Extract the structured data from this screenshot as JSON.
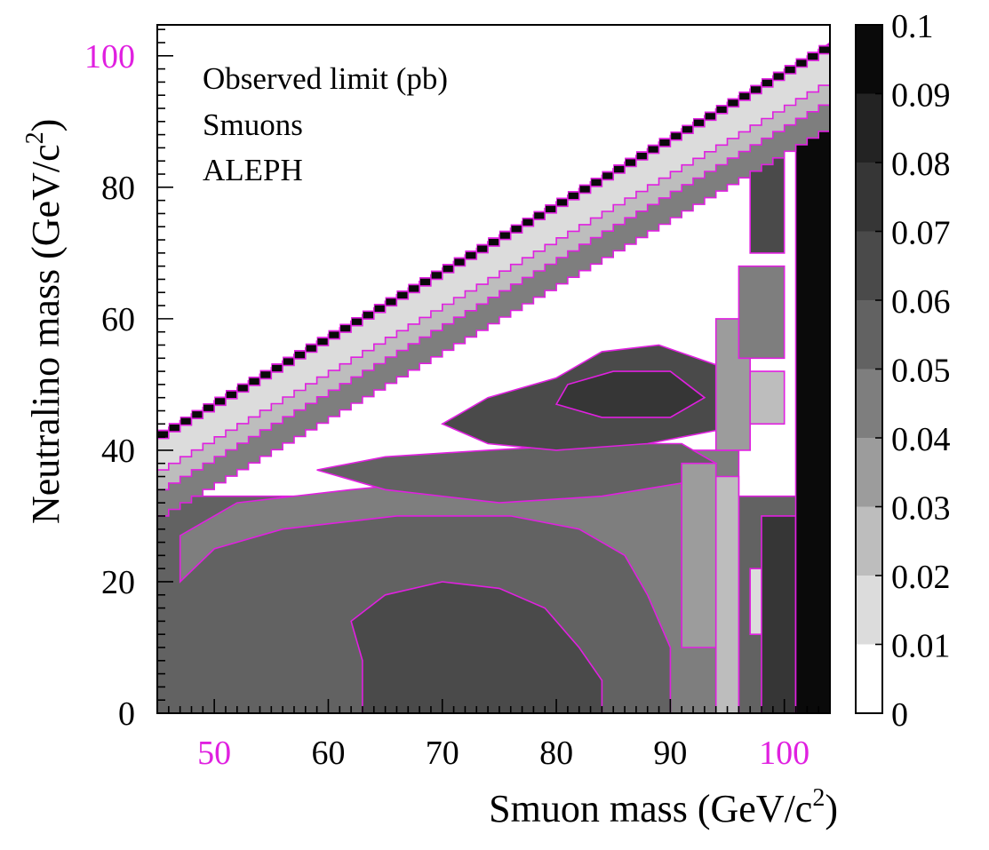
{
  "chart_data": {
    "type": "heatmap",
    "annotations": [
      "Observed limit (pb)",
      "Smuons",
      "ALEPH"
    ],
    "xlabel": "Smuon mass (GeV/c",
    "xlabel_sup": "2",
    "xlabel_tail": ")",
    "ylabel": "Neutralino mass (GeV/c",
    "ylabel_sup": "2",
    "ylabel_tail": ")",
    "xlim": [
      45,
      104
    ],
    "ylim": [
      0,
      100
    ],
    "x_ticks": [
      50,
      60,
      70,
      80,
      90,
      100
    ],
    "x_tick_labels": [
      "50",
      "60",
      "70",
      "80",
      "90",
      "100"
    ],
    "x_highlight_ticks": [
      "50",
      "100"
    ],
    "y_ticks": [
      0,
      20,
      40,
      60,
      80,
      100
    ],
    "y_tick_labels": [
      "0",
      "20",
      "40",
      "60",
      "80",
      "100"
    ],
    "y_highlight_ticks": [
      "100"
    ],
    "colorbar": {
      "min": 0,
      "max": 0.1,
      "levels": [
        0,
        0.01,
        0.02,
        0.03,
        0.04,
        0.05,
        0.06,
        0.07,
        0.08,
        0.09,
        0.1
      ],
      "tick_labels": [
        "0",
        "0.01",
        "0.02",
        "0.03",
        "0.04",
        "0.05",
        "0.06",
        "0.07",
        "0.08",
        "0.09",
        "0.1"
      ],
      "colors": [
        "#ffffff",
        "#dcdcdc",
        "#bdbdbd",
        "#9c9c9c",
        "#7e7e7e",
        "#626262",
        "#4a4a4a",
        "#363636",
        "#232323",
        "#0a0a0a"
      ]
    },
    "kinematic_boundary": {
      "x": [
        45,
        103.5
      ],
      "y": [
        43,
        102
      ]
    },
    "bands_near_diagonal": [
      {
        "offset_below_edge": 1.2,
        "value": 0.1
      },
      {
        "offset_below_edge": 6,
        "value": 0.015
      },
      {
        "offset_below_edge": 9,
        "value": 0.025
      },
      {
        "offset_below_edge": 13,
        "value": 0.045
      }
    ],
    "regions": [
      {
        "value": 0.055,
        "polygon": [
          [
            45,
            0
          ],
          [
            104,
            0
          ],
          [
            104,
            33
          ],
          [
            45,
            33
          ]
        ]
      },
      {
        "value": 0.045,
        "polygon": [
          [
            47,
            20
          ],
          [
            50,
            25
          ],
          [
            56,
            28
          ],
          [
            66,
            30
          ],
          [
            76,
            30
          ],
          [
            82,
            28
          ],
          [
            86,
            24
          ],
          [
            88,
            18
          ],
          [
            90,
            10
          ],
          [
            90,
            0
          ],
          [
            96,
            0
          ],
          [
            96,
            40
          ],
          [
            92,
            40
          ],
          [
            86,
            38
          ],
          [
            74,
            36
          ],
          [
            62,
            34
          ],
          [
            52,
            32
          ],
          [
            47,
            27
          ]
        ]
      },
      {
        "value": 0.055,
        "polygon": [
          [
            59,
            37
          ],
          [
            65,
            34
          ],
          [
            75,
            32
          ],
          [
            84,
            33
          ],
          [
            91,
            35
          ],
          [
            94,
            38
          ],
          [
            91,
            41
          ],
          [
            84,
            41
          ],
          [
            74,
            40
          ],
          [
            65,
            39
          ]
        ]
      },
      {
        "value": 0.065,
        "polygon": [
          [
            63,
            0
          ],
          [
            63,
            8
          ],
          [
            62,
            14
          ],
          [
            65,
            18
          ],
          [
            70,
            20
          ],
          [
            75,
            19
          ],
          [
            79,
            16
          ],
          [
            82,
            10
          ],
          [
            84,
            5
          ],
          [
            84,
            0
          ]
        ]
      },
      {
        "value": 0.065,
        "polygon": [
          [
            70,
            44
          ],
          [
            74,
            41
          ],
          [
            80,
            40
          ],
          [
            88,
            41
          ],
          [
            94,
            43
          ],
          [
            96,
            47
          ],
          [
            94,
            53
          ],
          [
            89,
            56
          ],
          [
            84,
            55
          ],
          [
            80,
            51
          ],
          [
            74,
            48
          ]
        ]
      },
      {
        "value": 0.075,
        "polygon": [
          [
            80,
            47
          ],
          [
            84,
            45
          ],
          [
            90,
            45
          ],
          [
            93,
            48
          ],
          [
            90,
            52
          ],
          [
            85,
            52
          ],
          [
            81,
            50
          ]
        ]
      },
      {
        "value": 0.015,
        "polygon": [
          [
            97,
            12
          ],
          [
            99,
            12
          ],
          [
            99,
            22
          ],
          [
            97,
            22
          ]
        ]
      },
      {
        "value": 0.025,
        "polygon": [
          [
            94,
            0
          ],
          [
            96,
            0
          ],
          [
            96,
            36
          ],
          [
            94,
            36
          ]
        ]
      },
      {
        "value": 0.035,
        "polygon": [
          [
            91,
            10
          ],
          [
            94,
            10
          ],
          [
            94,
            38
          ],
          [
            91,
            38
          ]
        ]
      },
      {
        "value": 0.035,
        "polygon": [
          [
            94,
            40
          ],
          [
            97,
            40
          ],
          [
            97,
            60
          ],
          [
            94,
            60
          ]
        ]
      },
      {
        "value": 0.025,
        "polygon": [
          [
            97,
            44
          ],
          [
            100,
            44
          ],
          [
            100,
            52
          ],
          [
            97,
            52
          ]
        ]
      },
      {
        "value": 0.045,
        "polygon": [
          [
            96,
            54
          ],
          [
            100,
            54
          ],
          [
            100,
            68
          ],
          [
            96,
            68
          ]
        ]
      },
      {
        "value": 0.06,
        "polygon": [
          [
            97,
            70
          ],
          [
            100,
            70
          ],
          [
            100,
            90
          ],
          [
            97,
            90
          ]
        ]
      },
      {
        "value": 0.075,
        "polygon": [
          [
            98,
            0
          ],
          [
            101,
            0
          ],
          [
            101,
            30
          ],
          [
            98,
            30
          ]
        ]
      },
      {
        "value": 0.1,
        "polygon": [
          [
            101,
            0
          ],
          [
            104,
            0
          ],
          [
            104,
            102
          ],
          [
            101,
            98
          ]
        ]
      },
      {
        "value": 0.015,
        "polygon": [
          [
            45,
            33
          ],
          [
            45,
            39
          ],
          [
            50,
            43
          ],
          [
            47,
            37
          ]
        ]
      }
    ]
  }
}
